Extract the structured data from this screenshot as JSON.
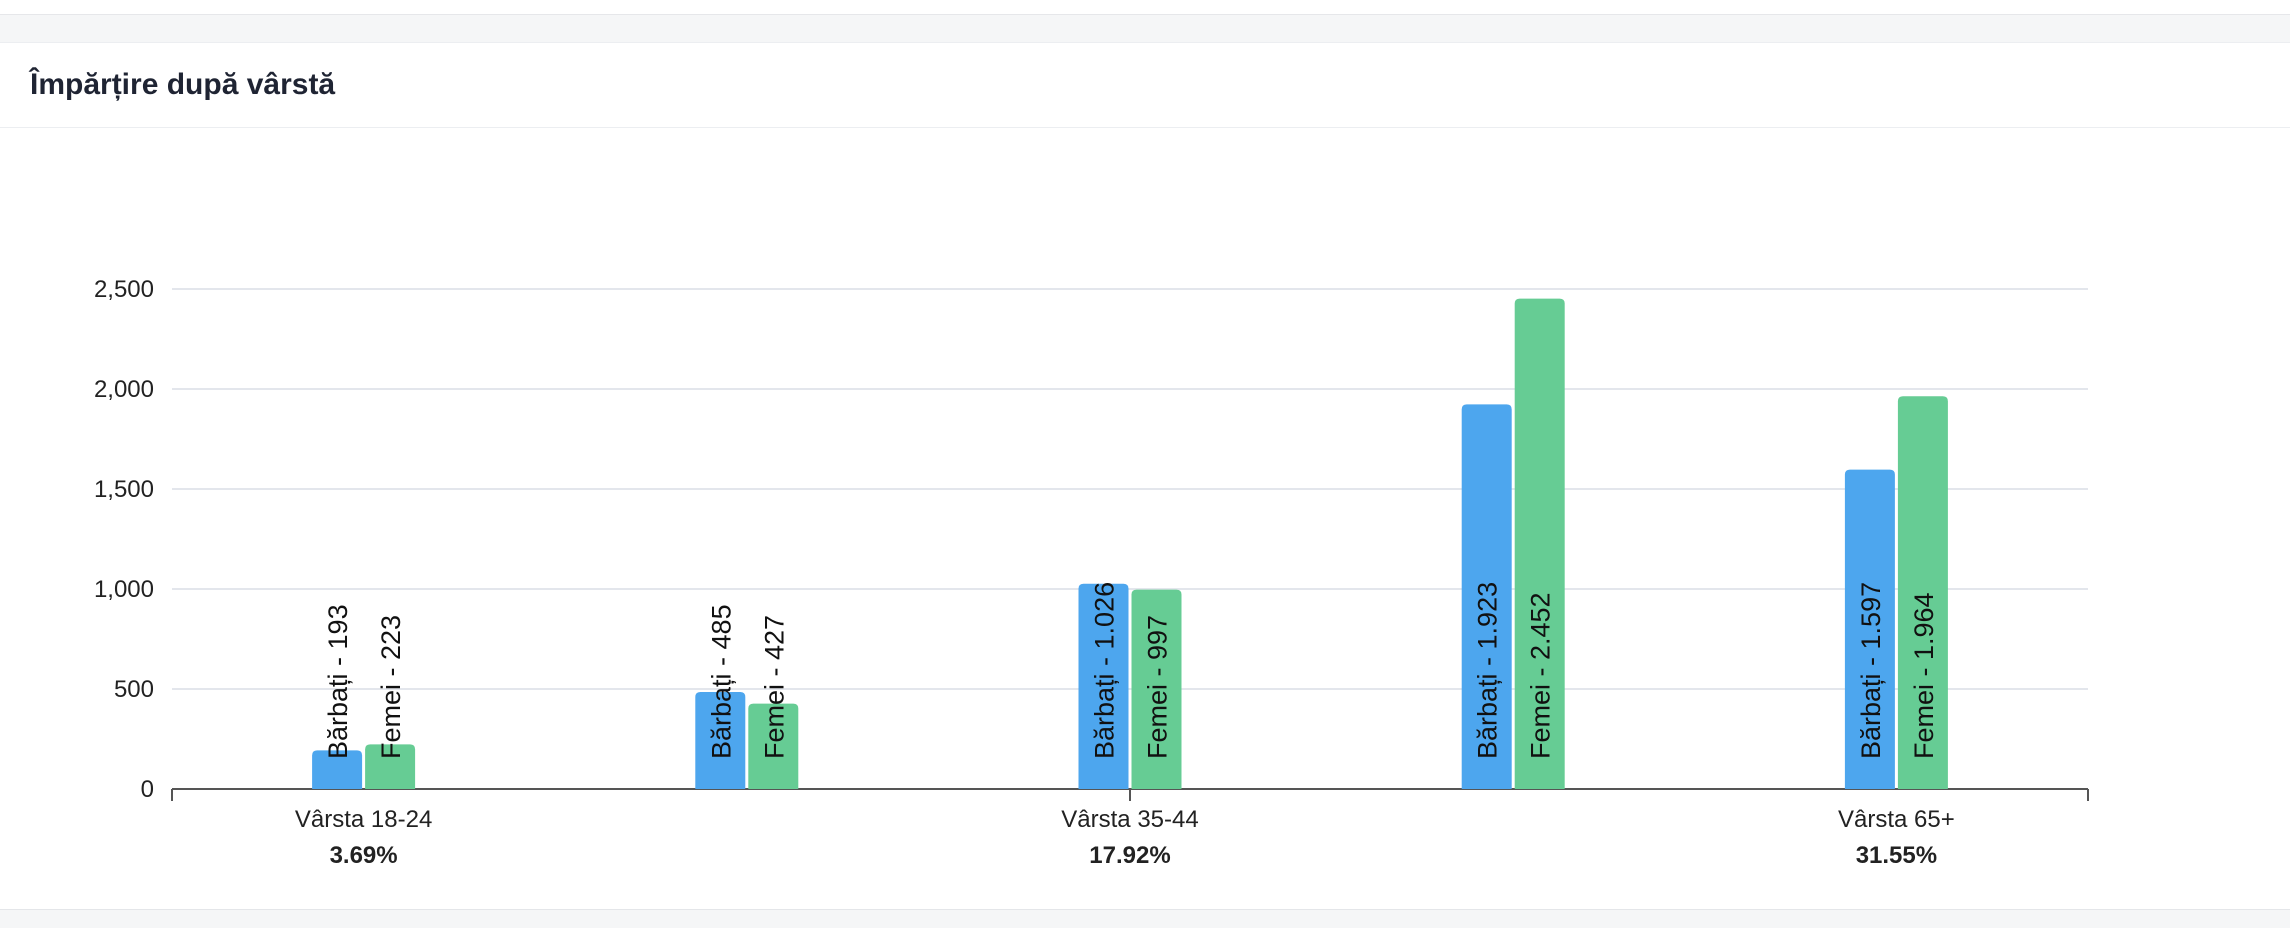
{
  "card": {
    "title": "Împărțire după vârstă"
  },
  "colors": {
    "men": "#4da6ee",
    "women": "#66cc94",
    "grid": "#e3e6ec",
    "axis": "#555555"
  },
  "chart_data": {
    "type": "bar",
    "title": "",
    "xlabel": "",
    "ylabel": "",
    "ylim": [
      0,
      2500
    ],
    "yticks": [
      0,
      500,
      1000,
      1500,
      2000,
      2500
    ],
    "ytick_labels": [
      "0",
      "500",
      "1,000",
      "1,500",
      "2,000",
      "2,500"
    ],
    "categories": [
      "Vârsta 18-24",
      "",
      "Vârsta 35-44",
      "",
      "Vârsta 65+"
    ],
    "category_percent": [
      "3.69%",
      "",
      "17.92%",
      "",
      "31.55%"
    ],
    "series": [
      {
        "key": "men",
        "values": [
          193,
          485,
          1026,
          1923,
          1597
        ],
        "labels": [
          "Bărbați - 193",
          "Bărbați - 485",
          "Bărbați - 1.026",
          "Bărbați - 1.923",
          "Bărbați - 1.597"
        ]
      },
      {
        "key": "women",
        "values": [
          223,
          427,
          997,
          2452,
          1964
        ],
        "labels": [
          "Femei - 223",
          "Femei - 427",
          "Femei - 997",
          "Femei - 2.452",
          "Femei - 1.964"
        ]
      }
    ],
    "grid": true,
    "legend": "none"
  }
}
